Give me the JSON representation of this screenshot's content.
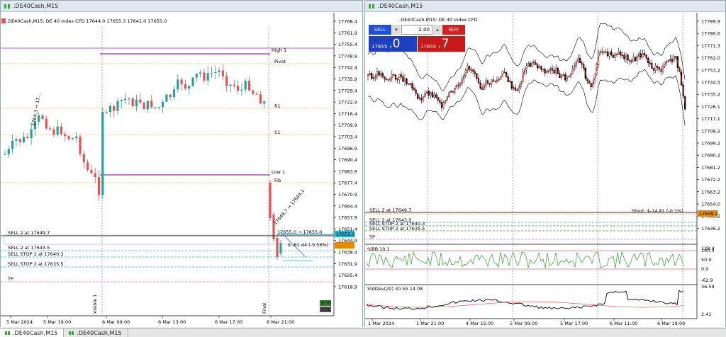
{
  "windows": [
    {
      "title": ".DE40Cash,M15",
      "header": ".DE40Cash,M15:  DE 40 Index CFD  17644.0 17655.3 17641.0 17655.0",
      "y_ticks": [
        "17768.4",
        "17761.9",
        "17755.4",
        "17748.9",
        "17742.4",
        "17735.9",
        "17729.4",
        "17722.9",
        "17716.4",
        "17709.9",
        "17703.4",
        "17696.9",
        "17690.4",
        "17683.9",
        "17677.4",
        "17670.9",
        "17664.4",
        "17657.9",
        "17651.4",
        "17644.9",
        "17638.4",
        "17631.9",
        "17625.4",
        "17618.9"
      ],
      "x_ticks": [
        "5 Mar 2024",
        "5 Mar 19:00",
        "6 Mar 09:00",
        "6 Mar 13:00",
        "6 Mar 17:00",
        "6 Mar 21:00"
      ],
      "order_labels": [
        "SELL 2 at 17649.7",
        "SELL 2 at 17643.5",
        "SELL STOP 2 at 17640.3",
        "SELL STOP 2 at 17635.5",
        "TP"
      ],
      "level_labels": [
        "High 1",
        "Low 1",
        "Pivot",
        "R1",
        "S1",
        "Fib"
      ],
      "annotation": "$ -61.44 (-0.56%)",
      "price_tag": "17655.0",
      "entry_label": "17655.0 → 17655.0",
      "diag_label_a": "1764.3 → 17...",
      "diag_label_b": "17649.7 → 17644.1",
      "badges": [
        "EOD",
        "VOL"
      ],
      "session_marks": [
        "Visible 1",
        "Final"
      ]
    },
    {
      "title": ".DE40Cash,M15",
      "header": ".DE40Cash,M15:  DE 40 Index CFD",
      "y_ticks": [
        "17789.9",
        "17780.6",
        "17771.3",
        "17762.0",
        "17753.2",
        "17744.5",
        "17735.2",
        "17726.1",
        "17717.1",
        "17708.2",
        "17699.2",
        "17690.2",
        "17681.2",
        "17672.2",
        "17663.2",
        "17654.0",
        "17645.2",
        "17636.2"
      ],
      "x_ticks": [
        "1 Mar 2024",
        "1 Mar 21:00",
        "4 Mar 15:00",
        "5 Mar 09:00",
        "5 Mar 17:00",
        "6 Mar 11:00",
        "6 Mar 19:00"
      ],
      "order_labels": [
        "SELL 2 at 17649.7",
        "SELL 2 at 17643.5",
        "SELL STOP 2 at 17640.3",
        "SELL STOP 2 at 17635.5",
        "TP"
      ],
      "short_label": "Short: $-14.81 (-0.1%)",
      "price_tag": "17649.2",
      "trade_panel": {
        "sell_label": "SELL",
        "buy_label": "BUY",
        "lot": "2.00",
        "sell_price_small": "17655",
        "sell_price_big": ".0",
        "buy_price_small": "17655",
        "buy_price_big": ".7"
      },
      "indicator1": {
        "label": "%BB 10.1",
        "ticks": [
          "128.4",
          "100.0",
          "50.0",
          "0.0",
          "-62.9"
        ]
      },
      "indicator2": {
        "label": "StdDev(20) 30.55 14.08",
        "ticks": [
          "36.59",
          "2.41"
        ]
      }
    }
  ],
  "tabs": [
    ".DE40Cash,M15",
    ".DE40Cash,M15"
  ],
  "colors": {
    "bull": "#2aa198",
    "bear": "#e05555",
    "purple": "#9b2fae",
    "orange": "#e68a00",
    "pink": "#ff66cc",
    "cyan": "#20b2d0",
    "green": "#2e9e2e"
  }
}
